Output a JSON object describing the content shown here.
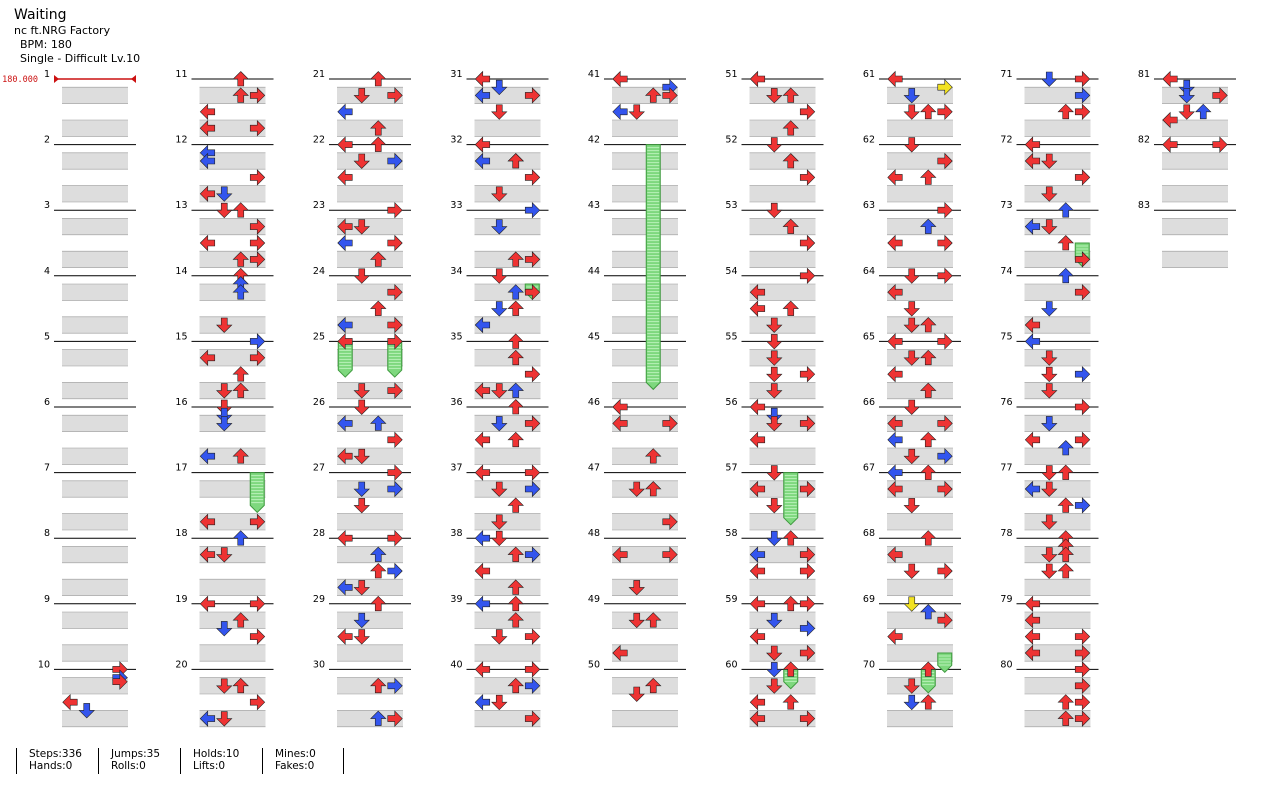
{
  "song": {
    "title": "Waiting",
    "artist": "nc ft.NRG Factory",
    "bpm_label": "BPM: 180",
    "difficulty_label": "Single - Difficult  Lv.10"
  },
  "bpm_marker": {
    "value": "180.000",
    "at_measure": 1
  },
  "colors": {
    "red": "#ee3333",
    "blue": "#3355ee",
    "yellow": "#f2e222",
    "green": "#7ed87e",
    "beat": "#dddddd"
  },
  "stats": {
    "steps": "Steps:336",
    "hands": "Hands:0",
    "jumps": "Jumps:35",
    "rolls": "Rolls:0",
    "holds": "Holds:10",
    "lifts": "Lifts:0",
    "mines": "Mines:0",
    "fakes": "Fakes:0"
  },
  "columns": [
    {
      "start": 1,
      "count": 10
    },
    {
      "start": 11,
      "count": 10
    },
    {
      "start": 21,
      "count": 10
    },
    {
      "start": 31,
      "count": 10
    },
    {
      "start": 41,
      "count": 10
    },
    {
      "start": 51,
      "count": 10
    },
    {
      "start": 61,
      "count": 10
    },
    {
      "start": 71,
      "count": 10
    },
    {
      "start": 81,
      "count": 3
    }
  ],
  "notes": [
    [
      10,
      0,
      3,
      0
    ],
    [
      10,
      0.5,
      3,
      1
    ],
    [
      10,
      0.75,
      3,
      0
    ],
    [
      10,
      2,
      0,
      0
    ],
    [
      10,
      2.5,
      1,
      1
    ],
    [
      11,
      0,
      2,
      0
    ],
    [
      11,
      1,
      2,
      0
    ],
    [
      11,
      1,
      3,
      0
    ],
    [
      11,
      2,
      0,
      0
    ],
    [
      11,
      3,
      0,
      0
    ],
    [
      11,
      3,
      3,
      0
    ],
    [
      12,
      0.5,
      0,
      1
    ],
    [
      12,
      1,
      0,
      1
    ],
    [
      12,
      2,
      3,
      0
    ],
    [
      12,
      3,
      1,
      1
    ],
    [
      12,
      3,
      0,
      0
    ],
    [
      13,
      0,
      1,
      0
    ],
    [
      13,
      0,
      2,
      0
    ],
    [
      13,
      1,
      3,
      0
    ],
    [
      13,
      2,
      0,
      0
    ],
    [
      13,
      2,
      3,
      0
    ],
    [
      13,
      3,
      2,
      0
    ],
    [
      13,
      3,
      3,
      0
    ],
    [
      14,
      0,
      2,
      0
    ],
    [
      14,
      0.5,
      2,
      1
    ],
    [
      14,
      1,
      2,
      1
    ],
    [
      14,
      3,
      1,
      0
    ],
    [
      15,
      0,
      3,
      1
    ],
    [
      15,
      1,
      0,
      0
    ],
    [
      15,
      1,
      3,
      0
    ],
    [
      15,
      2,
      2,
      0
    ],
    [
      15,
      3,
      1,
      0
    ],
    [
      15,
      3,
      2,
      0
    ],
    [
      16,
      0,
      1,
      0
    ],
    [
      16,
      0.5,
      1,
      1
    ],
    [
      16,
      1,
      1,
      1
    ],
    [
      16,
      3,
      0,
      1
    ],
    [
      16,
      3,
      2,
      0
    ],
    [
      17,
      3,
      0,
      0
    ],
    [
      17,
      3,
      3,
      0
    ],
    [
      18,
      0,
      2,
      1
    ],
    [
      18,
      1,
      1,
      0
    ],
    [
      18,
      1,
      0,
      0
    ],
    [
      19,
      0,
      0,
      0
    ],
    [
      19,
      0,
      3,
      0
    ],
    [
      19,
      1,
      2,
      0
    ],
    [
      19,
      1.5,
      1,
      1
    ],
    [
      19,
      2,
      3,
      0
    ],
    [
      20,
      1,
      2,
      0
    ],
    [
      20,
      1,
      1,
      0
    ],
    [
      20,
      2,
      3,
      0
    ],
    [
      20,
      3,
      0,
      1
    ],
    [
      20,
      3,
      1,
      0
    ],
    [
      21,
      0,
      2,
      0
    ],
    [
      21,
      1,
      1,
      0
    ],
    [
      21,
      1,
      3,
      0
    ],
    [
      21,
      2,
      0,
      1
    ],
    [
      21,
      3,
      2,
      0
    ],
    [
      22,
      0,
      0,
      0
    ],
    [
      22,
      0,
      2,
      0
    ],
    [
      22,
      1,
      1,
      0
    ],
    [
      22,
      1,
      3,
      1
    ],
    [
      22,
      2,
      0,
      0
    ],
    [
      23,
      0,
      3,
      0
    ],
    [
      23,
      1,
      0,
      0
    ],
    [
      23,
      1,
      1,
      0
    ],
    [
      23,
      2,
      0,
      1
    ],
    [
      23,
      2,
      3,
      0
    ],
    [
      23,
      3,
      2,
      0
    ],
    [
      24,
      0,
      1,
      0
    ],
    [
      24,
      1,
      3,
      0
    ],
    [
      24,
      2,
      2,
      0
    ],
    [
      24,
      3,
      0,
      1
    ],
    [
      24,
      3,
      3,
      0
    ],
    [
      25,
      0,
      0,
      0
    ],
    [
      25,
      0,
      3,
      0
    ],
    [
      25,
      3,
      1,
      0
    ],
    [
      25,
      3,
      3,
      0
    ],
    [
      26,
      0,
      1,
      0
    ],
    [
      26,
      1,
      0,
      1
    ],
    [
      26,
      1,
      2,
      1
    ],
    [
      26,
      2,
      3,
      0
    ],
    [
      26,
      3,
      0,
      0
    ],
    [
      26,
      3,
      1,
      0
    ],
    [
      27,
      0,
      3,
      0
    ],
    [
      27,
      1,
      1,
      1
    ],
    [
      27,
      1,
      3,
      1
    ],
    [
      27,
      2,
      1,
      0
    ],
    [
      28,
      0,
      0,
      0
    ],
    [
      28,
      0,
      3,
      0
    ],
    [
      28,
      1,
      2,
      1
    ],
    [
      28,
      2,
      3,
      1
    ],
    [
      28,
      2,
      2,
      0
    ],
    [
      28,
      3,
      0,
      1
    ],
    [
      28,
      3,
      1,
      0
    ],
    [
      29,
      0,
      2,
      0
    ],
    [
      29,
      1,
      1,
      1
    ],
    [
      29,
      2,
      0,
      0
    ],
    [
      29,
      2,
      1,
      0
    ],
    [
      30,
      1,
      2,
      0
    ],
    [
      30,
      1,
      3,
      1
    ],
    [
      30,
      3,
      2,
      1
    ],
    [
      30,
      3,
      3,
      0
    ],
    [
      31,
      0,
      0,
      0
    ],
    [
      31,
      0.5,
      1,
      1
    ],
    [
      31,
      1,
      0,
      1
    ],
    [
      31,
      1,
      3,
      0
    ],
    [
      31,
      2,
      1,
      0
    ],
    [
      32,
      0,
      0,
      0
    ],
    [
      32,
      1,
      2,
      1
    ],
    [
      32,
      1,
      0,
      1
    ],
    [
      32,
      1,
      2,
      0
    ],
    [
      32,
      2,
      3,
      0
    ],
    [
      32,
      3,
      1,
      0
    ],
    [
      33,
      0,
      3,
      1
    ],
    [
      33,
      1,
      1,
      1
    ],
    [
      33,
      3,
      2,
      0
    ],
    [
      33,
      3,
      3,
      0
    ],
    [
      34,
      0,
      1,
      0
    ],
    [
      34,
      1,
      2,
      1
    ],
    [
      34,
      1,
      3,
      0
    ],
    [
      34,
      2,
      1,
      1
    ],
    [
      34,
      2,
      2,
      0
    ],
    [
      34,
      3,
      0,
      1
    ],
    [
      35,
      0,
      2,
      0
    ],
    [
      35,
      1,
      2,
      0
    ],
    [
      35,
      2,
      3,
      0
    ],
    [
      35,
      3,
      0,
      0
    ],
    [
      35,
      3,
      2,
      1
    ],
    [
      35,
      3,
      1,
      0
    ],
    [
      36,
      0,
      2,
      0
    ],
    [
      36,
      1,
      1,
      1
    ],
    [
      36,
      1,
      3,
      0
    ],
    [
      36,
      2,
      0,
      0
    ],
    [
      36,
      2,
      2,
      0
    ],
    [
      37,
      0,
      0,
      0
    ],
    [
      37,
      0,
      3,
      0
    ],
    [
      37,
      1,
      1,
      0
    ],
    [
      37,
      1,
      3,
      1
    ],
    [
      37,
      2,
      2,
      0
    ],
    [
      37,
      3,
      1,
      0
    ],
    [
      38,
      0,
      0,
      1
    ],
    [
      38,
      0,
      1,
      0
    ],
    [
      38,
      1,
      2,
      0
    ],
    [
      38,
      1,
      3,
      1
    ],
    [
      38,
      2,
      0,
      0
    ],
    [
      38,
      3,
      2,
      0
    ],
    [
      39,
      0,
      0,
      1
    ],
    [
      39,
      0,
      2,
      0
    ],
    [
      39,
      1,
      2,
      0
    ],
    [
      39,
      2,
      1,
      0
    ],
    [
      39,
      2,
      3,
      0
    ],
    [
      40,
      0,
      0,
      0
    ],
    [
      40,
      0,
      3,
      0
    ],
    [
      40,
      1,
      2,
      0
    ],
    [
      40,
      1,
      3,
      1
    ],
    [
      40,
      2,
      0,
      1
    ],
    [
      40,
      2,
      1,
      0
    ],
    [
      40,
      3,
      3,
      0
    ],
    [
      41,
      0,
      0,
      0
    ],
    [
      41,
      0.5,
      3,
      1
    ],
    [
      41,
      1,
      2,
      0
    ],
    [
      41,
      1,
      3,
      0
    ],
    [
      41,
      2,
      0,
      1
    ],
    [
      41,
      2,
      1,
      0
    ],
    [
      46,
      0,
      0,
      0
    ],
    [
      46,
      1,
      0,
      0
    ],
    [
      46,
      1,
      3,
      0
    ],
    [
      46,
      3,
      2,
      0
    ],
    [
      47,
      1,
      1,
      0
    ],
    [
      47,
      1,
      2,
      0
    ],
    [
      47,
      3,
      3,
      0
    ],
    [
      48,
      1,
      0,
      0
    ],
    [
      48,
      1,
      3,
      0
    ],
    [
      48,
      3,
      1,
      0
    ],
    [
      49,
      1,
      1,
      0
    ],
    [
      49,
      1,
      2,
      0
    ],
    [
      49,
      3,
      0,
      0
    ],
    [
      50,
      1,
      2,
      0
    ],
    [
      50,
      1.5,
      1,
      0
    ],
    [
      51,
      0,
      0,
      0
    ],
    [
      51,
      1,
      1,
      0
    ],
    [
      51,
      1,
      2,
      0
    ],
    [
      51,
      2,
      3,
      0
    ],
    [
      51,
      3,
      2,
      0
    ],
    [
      52,
      0,
      1,
      0
    ],
    [
      52,
      1,
      2,
      0
    ],
    [
      52,
      2,
      3,
      0
    ],
    [
      53,
      0,
      1,
      0
    ],
    [
      53,
      1,
      2,
      0
    ],
    [
      53,
      2,
      3,
      0
    ],
    [
      54,
      0,
      3,
      0
    ],
    [
      54,
      1,
      0,
      0
    ],
    [
      54,
      2,
      0,
      0
    ],
    [
      54,
      2,
      2,
      0
    ],
    [
      54,
      3,
      1,
      0
    ],
    [
      55,
      0,
      1,
      0
    ],
    [
      55,
      1,
      1,
      0
    ],
    [
      55,
      2,
      1,
      0
    ],
    [
      55,
      2,
      3,
      0
    ],
    [
      55,
      3,
      1,
      0
    ],
    [
      56,
      0,
      0,
      0
    ],
    [
      56,
      0.5,
      1,
      1
    ],
    [
      56,
      1,
      1,
      0
    ],
    [
      56,
      1,
      3,
      0
    ],
    [
      56,
      2,
      0,
      0
    ],
    [
      57,
      0,
      1,
      0
    ],
    [
      57,
      1,
      0,
      0
    ],
    [
      57,
      1,
      3,
      0
    ],
    [
      57,
      2,
      1,
      0
    ],
    [
      58,
      0,
      1,
      1
    ],
    [
      58,
      0,
      2,
      0
    ],
    [
      58,
      1,
      0,
      1
    ],
    [
      58,
      1,
      3,
      0
    ],
    [
      58,
      2,
      0,
      0
    ],
    [
      58,
      2,
      3,
      0
    ],
    [
      59,
      0,
      0,
      0
    ],
    [
      59,
      0,
      2,
      0
    ],
    [
      59,
      0,
      3,
      0
    ],
    [
      59,
      1,
      1,
      1
    ],
    [
      59,
      1.5,
      3,
      1
    ],
    [
      59,
      2,
      0,
      0
    ],
    [
      59,
      3,
      1,
      0
    ],
    [
      59,
      3,
      3,
      0
    ],
    [
      60,
      0,
      1,
      1
    ],
    [
      60,
      0,
      2,
      0
    ],
    [
      60,
      1,
      1,
      0
    ],
    [
      60,
      2,
      0,
      0
    ],
    [
      60,
      2,
      2,
      0
    ],
    [
      60,
      3,
      0,
      0
    ],
    [
      60,
      3,
      3,
      0
    ],
    [
      61,
      0,
      0,
      0
    ],
    [
      61,
      0.5,
      3,
      2
    ],
    [
      61,
      1,
      1,
      1
    ],
    [
      61,
      2,
      1,
      0
    ],
    [
      61,
      2,
      2,
      0
    ],
    [
      61,
      2,
      3,
      0
    ],
    [
      62,
      0,
      1,
      0
    ],
    [
      62,
      1,
      3,
      0
    ],
    [
      62,
      2,
      0,
      0
    ],
    [
      62,
      2,
      2,
      0
    ],
    [
      63,
      0,
      3,
      0
    ],
    [
      63,
      1,
      2,
      1
    ],
    [
      63,
      2,
      0,
      0
    ],
    [
      63,
      2,
      3,
      0
    ],
    [
      64,
      0,
      1,
      0
    ],
    [
      64,
      0,
      3,
      0
    ],
    [
      64,
      1,
      0,
      0
    ],
    [
      64,
      2,
      1,
      0
    ],
    [
      64,
      3,
      1,
      0
    ],
    [
      64,
      3,
      2,
      0
    ],
    [
      65,
      0,
      0,
      0
    ],
    [
      65,
      0,
      3,
      0
    ],
    [
      65,
      1,
      1,
      0
    ],
    [
      65,
      1,
      2,
      0
    ],
    [
      65,
      2,
      0,
      0
    ],
    [
      65,
      3,
      2,
      0
    ],
    [
      66,
      0,
      1,
      0
    ],
    [
      66,
      1,
      0,
      0
    ],
    [
      66,
      1,
      3,
      0
    ],
    [
      66,
      2,
      0,
      1
    ],
    [
      66,
      2,
      2,
      0
    ],
    [
      66,
      3,
      1,
      0
    ],
    [
      66,
      3,
      3,
      1
    ],
    [
      67,
      0,
      0,
      1
    ],
    [
      67,
      0,
      2,
      0
    ],
    [
      67,
      1,
      0,
      0
    ],
    [
      67,
      1,
      3,
      0
    ],
    [
      67,
      2,
      1,
      0
    ],
    [
      68,
      0,
      2,
      0
    ],
    [
      68,
      1,
      0,
      0
    ],
    [
      68,
      2,
      1,
      0
    ],
    [
      68,
      2,
      3,
      0
    ],
    [
      69,
      0,
      1,
      2
    ],
    [
      69,
      0.5,
      2,
      1
    ],
    [
      69,
      1,
      3,
      0
    ],
    [
      69,
      2,
      0,
      0
    ],
    [
      70,
      0,
      2,
      0
    ],
    [
      70,
      1,
      1,
      0
    ],
    [
      70,
      2,
      1,
      1
    ],
    [
      70,
      2,
      2,
      0
    ],
    [
      71,
      0,
      1,
      1
    ],
    [
      71,
      0,
      3,
      0
    ],
    [
      71,
      1,
      3,
      1
    ],
    [
      71,
      2,
      2,
      0
    ],
    [
      71,
      2,
      3,
      0
    ],
    [
      72,
      0,
      0,
      0
    ],
    [
      72,
      1,
      0,
      0
    ],
    [
      72,
      1,
      1,
      0
    ],
    [
      72,
      2,
      3,
      0
    ],
    [
      72,
      3,
      1,
      0
    ],
    [
      73,
      0,
      2,
      1
    ],
    [
      73,
      1,
      1,
      0
    ],
    [
      73,
      1,
      0,
      1
    ],
    [
      73,
      2,
      2,
      0
    ],
    [
      73,
      3,
      3,
      0
    ],
    [
      74,
      0,
      2,
      1
    ],
    [
      74,
      1,
      3,
      0
    ],
    [
      74,
      2,
      1,
      1
    ],
    [
      74,
      3,
      0,
      0
    ],
    [
      75,
      0,
      0,
      1
    ],
    [
      75,
      1,
      1,
      0
    ],
    [
      75,
      2,
      1,
      0
    ],
    [
      75,
      2,
      3,
      1
    ],
    [
      75,
      3,
      1,
      0
    ],
    [
      76,
      0,
      3,
      0
    ],
    [
      76,
      1,
      1,
      1
    ],
    [
      76,
      2,
      0,
      0
    ],
    [
      76,
      2,
      3,
      0
    ],
    [
      76,
      2.5,
      2,
      1
    ],
    [
      77,
      0,
      1,
      0
    ],
    [
      77,
      0,
      2,
      0
    ],
    [
      77,
      1,
      0,
      1
    ],
    [
      77,
      1,
      1,
      0
    ],
    [
      77,
      2,
      2,
      0
    ],
    [
      77,
      2,
      3,
      1
    ],
    [
      77,
      3,
      1,
      0
    ],
    [
      78,
      0,
      2,
      0
    ],
    [
      78,
      0.5,
      2,
      0
    ],
    [
      78,
      1,
      1,
      0
    ],
    [
      78,
      1,
      2,
      0
    ],
    [
      78,
      2,
      1,
      0
    ],
    [
      78,
      2,
      2,
      0
    ],
    [
      79,
      0,
      0,
      0
    ],
    [
      79,
      1,
      0,
      0
    ],
    [
      79,
      2,
      0,
      0
    ],
    [
      79,
      2,
      3,
      0
    ],
    [
      79,
      3,
      0,
      0
    ],
    [
      79,
      3,
      3,
      0
    ],
    [
      80,
      0,
      3,
      0
    ],
    [
      80,
      1,
      3,
      0
    ],
    [
      80,
      2,
      2,
      0
    ],
    [
      80,
      2,
      3,
      0
    ],
    [
      80,
      3,
      2,
      0
    ],
    [
      80,
      3,
      3,
      0
    ],
    [
      81,
      0,
      0,
      0
    ],
    [
      81,
      0.5,
      1,
      1
    ],
    [
      81,
      1,
      1,
      1
    ],
    [
      81,
      1,
      3,
      0
    ],
    [
      81,
      2,
      2,
      1
    ],
    [
      81,
      2,
      1,
      0
    ],
    [
      81,
      2.5,
      0,
      0
    ],
    [
      82,
      0,
      0,
      0
    ],
    [
      82,
      0,
      3,
      0
    ]
  ],
  "holds": [
    [
      17,
      0,
      3,
      2
    ],
    [
      25,
      0,
      0,
      1.75
    ],
    [
      25,
      0,
      3,
      1.75
    ],
    [
      34,
      0.5,
      3,
      0.5
    ],
    [
      42,
      0,
      2,
      14.5
    ],
    [
      57,
      0,
      2,
      2.75
    ],
    [
      60,
      0,
      2,
      0.75
    ],
    [
      70,
      0,
      2,
      1
    ],
    [
      69,
      3,
      3,
      0.75
    ],
    [
      73,
      2,
      3,
      1
    ]
  ],
  "notes_legend": "[measure, beat, lane(0=L,1=D,2=U,3=R), color(0=red,1=blue,2=yellow)]"
}
